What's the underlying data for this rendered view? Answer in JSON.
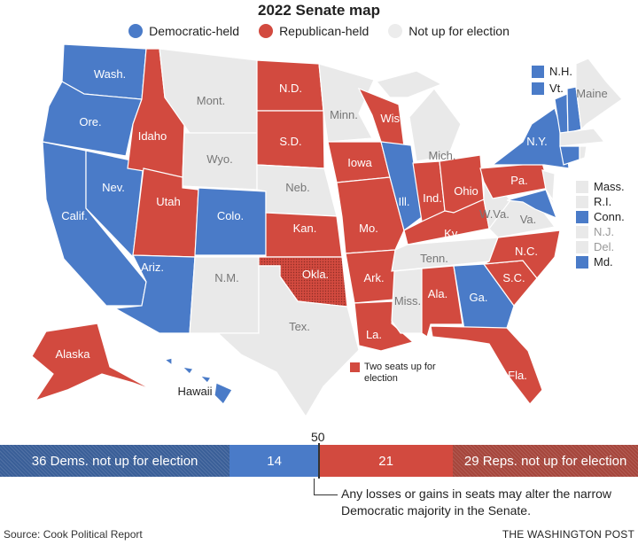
{
  "title": "2022 Senate map",
  "legend": [
    {
      "label": "Democratic-held",
      "color": "#4a7bc8"
    },
    {
      "label": "Republican-held",
      "color": "#d24a3f"
    },
    {
      "label": "Not up for election",
      "color": "#ececec"
    }
  ],
  "colors": {
    "dem": "#4a7bc8",
    "rep": "#d24a3f",
    "none": "#e9e9e9",
    "dem_dark": "#3a5f98",
    "rep_dark": "#a6463c"
  },
  "states": {
    "wa": {
      "label": "Wash.",
      "status": "dem"
    },
    "or": {
      "label": "Ore.",
      "status": "dem"
    },
    "ca": {
      "label": "Calif.",
      "status": "dem"
    },
    "nv": {
      "label": "Nev.",
      "status": "dem"
    },
    "id": {
      "label": "Idaho",
      "status": "rep"
    },
    "mt": {
      "label": "Mont.",
      "status": "none"
    },
    "wy": {
      "label": "Wyo.",
      "status": "none"
    },
    "ut": {
      "label": "Utah",
      "status": "rep"
    },
    "co": {
      "label": "Colo.",
      "status": "dem"
    },
    "az": {
      "label": "Ariz.",
      "status": "dem"
    },
    "nm": {
      "label": "N.M.",
      "status": "none"
    },
    "nd": {
      "label": "N.D.",
      "status": "rep"
    },
    "sd": {
      "label": "S.D.",
      "status": "rep"
    },
    "ne": {
      "label": "Neb.",
      "status": "none"
    },
    "ks": {
      "label": "Kan.",
      "status": "rep"
    },
    "ok": {
      "label": "Okla.",
      "status": "rep",
      "two_seats": true
    },
    "tx": {
      "label": "Tex.",
      "status": "none"
    },
    "mn": {
      "label": "Minn.",
      "status": "none"
    },
    "ia": {
      "label": "Iowa",
      "status": "rep"
    },
    "mo": {
      "label": "Mo.",
      "status": "rep"
    },
    "ar": {
      "label": "Ark.",
      "status": "rep"
    },
    "la": {
      "label": "La.",
      "status": "rep"
    },
    "wi": {
      "label": "Wis.",
      "status": "rep"
    },
    "il": {
      "label": "Ill.",
      "status": "dem"
    },
    "mi": {
      "label": "Mich.",
      "status": "none"
    },
    "in": {
      "label": "Ind.",
      "status": "rep"
    },
    "oh": {
      "label": "Ohio",
      "status": "rep"
    },
    "ky": {
      "label": "Ky.",
      "status": "rep"
    },
    "tn": {
      "label": "Tenn.",
      "status": "none"
    },
    "ms": {
      "label": "Miss.",
      "status": "none"
    },
    "al": {
      "label": "Ala.",
      "status": "rep"
    },
    "ga": {
      "label": "Ga.",
      "status": "dem"
    },
    "fl": {
      "label": "Fla.",
      "status": "rep"
    },
    "sc": {
      "label": "S.C.",
      "status": "rep"
    },
    "nc": {
      "label": "N.C.",
      "status": "rep"
    },
    "va": {
      "label": "Va.",
      "status": "none"
    },
    "wv": {
      "label": "W.Va.",
      "status": "none"
    },
    "pa": {
      "label": "Pa.",
      "status": "rep"
    },
    "ny": {
      "label": "N.Y.",
      "status": "dem"
    },
    "md": {
      "label": "Md.",
      "status": "dem"
    },
    "nj": {
      "label": "N.J.",
      "status": "none"
    },
    "de": {
      "label": "Del.",
      "status": "none"
    },
    "vt": {
      "label": "Vt.",
      "status": "dem"
    },
    "nh": {
      "label": "N.H.",
      "status": "dem"
    },
    "me": {
      "label": "Maine",
      "status": "none"
    },
    "ma": {
      "label": "Mass.",
      "status": "none"
    },
    "ri": {
      "label": "R.I.",
      "status": "none"
    },
    "ct": {
      "label": "Conn.",
      "status": "dem"
    },
    "ak": {
      "label": "Alaska",
      "status": "rep"
    },
    "hi": {
      "label": "Hawaii",
      "status": "dem"
    }
  },
  "two_seats_note": "Two seats up for election",
  "seat_bar": {
    "majority_label": "50",
    "segments": [
      {
        "label": "36 Dems. not up for election",
        "seats": 36,
        "kind": "dem_dark"
      },
      {
        "label": "14",
        "seats": 14,
        "kind": "dem"
      },
      {
        "label": "21",
        "seats": 21,
        "kind": "rep"
      },
      {
        "label": "29 Reps. not up for election",
        "seats": 29,
        "kind": "rep_dark"
      }
    ],
    "note": "Any losses or gains in seats may alter the narrow Democratic majority in the Senate."
  },
  "source": "Source: Cook Political Report",
  "brand": "THE WASHINGTON POST"
}
